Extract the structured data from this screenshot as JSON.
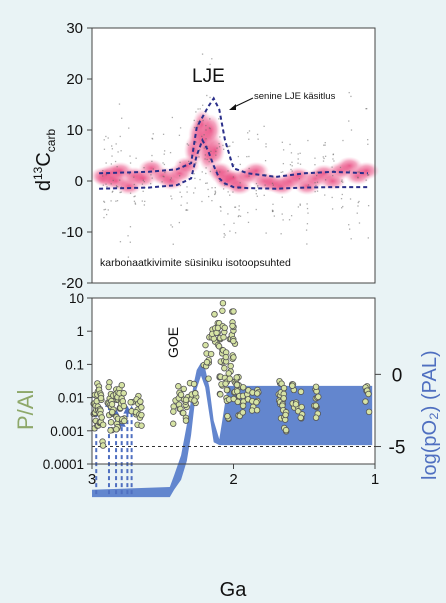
{
  "chart_data": [
    {
      "type": "scatter",
      "ylabel_main": "d",
      "ylabel_sup": "13",
      "ylabel_c": "C",
      "ylabel_sub": "carb",
      "xlim": [
        3.0,
        1.0
      ],
      "ylim": [
        -20,
        30
      ],
      "yticks": [
        "30",
        "20",
        "10",
        "0",
        "-10",
        "-20"
      ],
      "annotations": {
        "peak": "LJE",
        "arrow_label": "senine LJE käsitlus",
        "caption": "karbonaatkivimite süsiniku isotoopsuhted"
      },
      "series": [
        {
          "name": "envelope_upper",
          "x": [
            2.95,
            2.6,
            2.4,
            2.3,
            2.26,
            2.22,
            2.18,
            2.14,
            2.1,
            2.06,
            2.0,
            1.9,
            1.7,
            1.5,
            1.3,
            1.05
          ],
          "y": [
            1.5,
            1.8,
            2.3,
            3.5,
            10.5,
            12.5,
            14.5,
            16.2,
            14,
            8,
            2.5,
            1.5,
            0.8,
            1.5,
            1.8,
            1.5
          ]
        },
        {
          "name": "envelope_lower",
          "x": [
            2.95,
            2.6,
            2.4,
            2.3,
            2.26,
            2.22,
            2.18,
            2.14,
            2.1,
            2.06,
            2.0,
            1.9,
            1.7,
            1.5,
            1.3,
            1.05
          ],
          "y": [
            -1.5,
            -1.3,
            -0.8,
            0.5,
            5,
            8,
            6,
            3,
            0.5,
            -0.5,
            -1.2,
            -1.4,
            -1.5,
            -1.3,
            -1.2,
            -1.2
          ]
        },
        {
          "name": "measurements",
          "x": [
            2.92,
            2.9,
            2.86,
            2.83,
            2.8,
            2.74,
            2.7,
            2.64,
            2.58,
            2.5,
            2.44,
            2.38,
            2.33,
            2.28,
            2.25,
            2.22,
            2.2,
            2.18,
            2.16,
            2.13,
            2.1,
            2.07,
            2.04,
            2.0,
            1.96,
            1.9,
            1.84,
            1.78,
            1.72,
            1.66,
            1.6,
            1.54,
            1.48,
            1.42,
            1.36,
            1.3,
            1.24,
            1.18,
            1.12,
            1.06
          ],
          "y": [
            1,
            0.5,
            1.5,
            0,
            2,
            -1,
            1,
            0.5,
            2.5,
            1,
            0,
            1.5,
            3,
            6,
            9,
            11,
            8,
            5,
            10,
            6,
            2,
            1,
            0,
            0.5,
            -1,
            1,
            2,
            0,
            -0.5,
            -1,
            0,
            1,
            -1,
            0.5,
            1.5,
            0,
            2,
            3,
            1,
            2
          ]
        }
      ]
    },
    {
      "type": "scatter",
      "ylabel_left": "P/Al",
      "ylabel_right": "log(pO₂) (PAL)",
      "xlabel": "Ga",
      "xlim": [
        3.0,
        1.0
      ],
      "xticks": [
        "3",
        "2",
        "1"
      ],
      "ylim_log": [
        0.0001,
        10
      ],
      "yticks_left": [
        "10",
        "1",
        "0.1",
        "0.01",
        "0.001",
        "0.0001"
      ],
      "yticks_right": [
        "0",
        "-5"
      ],
      "annotations": {
        "event": "GOE"
      },
      "colors": {
        "oxygen_band": "#5b7fcb",
        "points": "#d6e3a4",
        "left_label": "#8ea86a",
        "right_label": "#4f6fc0"
      },
      "oxygen_band": {
        "x": [
          3.0,
          2.45,
          2.42,
          2.37,
          2.33,
          2.3,
          2.28,
          2.26,
          2.23,
          2.2,
          2.17,
          2.14,
          2.1,
          2.06,
          2.04,
          1.02
        ],
        "upper_pal_log": [
          -8.0,
          -7.8,
          -7.0,
          -5.6,
          -3.5,
          -1.8,
          -0.6,
          0.3,
          0.8,
          0.4,
          -0.9,
          -3.2,
          -4.5,
          -2.0,
          -0.8,
          -0.8
        ],
        "lower_pal_log": [
          -8.5,
          -8.5,
          -8.0,
          -7.3,
          -6.0,
          -4.2,
          -2.5,
          -1.0,
          -0.1,
          -0.9,
          -2.8,
          -4.7,
          -4.9,
          -4.9,
          -4.9,
          -4.9
        ]
      },
      "dashed_reference_pal_log": -5,
      "points": {
        "x": [
          2.98,
          2.97,
          2.96,
          2.96,
          2.95,
          2.94,
          2.93,
          2.88,
          2.87,
          2.86,
          2.85,
          2.83,
          2.82,
          2.81,
          2.8,
          2.78,
          2.72,
          2.68,
          2.66,
          2.42,
          2.38,
          2.36,
          2.33,
          2.3,
          2.27,
          2.2,
          2.18,
          2.16,
          2.14,
          2.12,
          2.1,
          2.09,
          2.08,
          2.07,
          2.06,
          2.05,
          2.04,
          2.03,
          2.02,
          2.01,
          2.0,
          1.99,
          1.98,
          1.97,
          1.96,
          1.93,
          1.9,
          1.87,
          1.83,
          1.67,
          1.66,
          1.65,
          1.64,
          1.63,
          1.58,
          1.55,
          1.52,
          1.42,
          1.41,
          1.06,
          1.05
        ],
        "y": [
          0.003,
          0.008,
          0.012,
          0.002,
          0.004,
          0.006,
          0.001,
          0.015,
          0.005,
          0.002,
          0.009,
          0.02,
          0.003,
          0.007,
          0.012,
          0.005,
          0.005,
          0.004,
          0.004,
          0.003,
          0.012,
          0.008,
          0.004,
          0.02,
          0.01,
          0.15,
          0.05,
          0.4,
          1.2,
          2.0,
          0.8,
          0.03,
          0.3,
          2.5,
          0.1,
          0.012,
          0.005,
          0.05,
          0.7,
          1.5,
          0.2,
          0.02,
          0.008,
          0.015,
          0.006,
          0.01,
          0.012,
          0.006,
          0.008,
          0.015,
          0.006,
          0.01,
          0.003,
          0.0015,
          0.009,
          0.007,
          0.006,
          0.012,
          0.004,
          0.009,
          0.007
        ]
      },
      "dashed_arrows": {
        "x": [
          2.97,
          2.88,
          2.83,
          2.79,
          2.75,
          2.72
        ],
        "top": [
          0.015,
          0.008,
          0.004,
          0.002,
          0.005,
          0.005
        ]
      }
    }
  ]
}
